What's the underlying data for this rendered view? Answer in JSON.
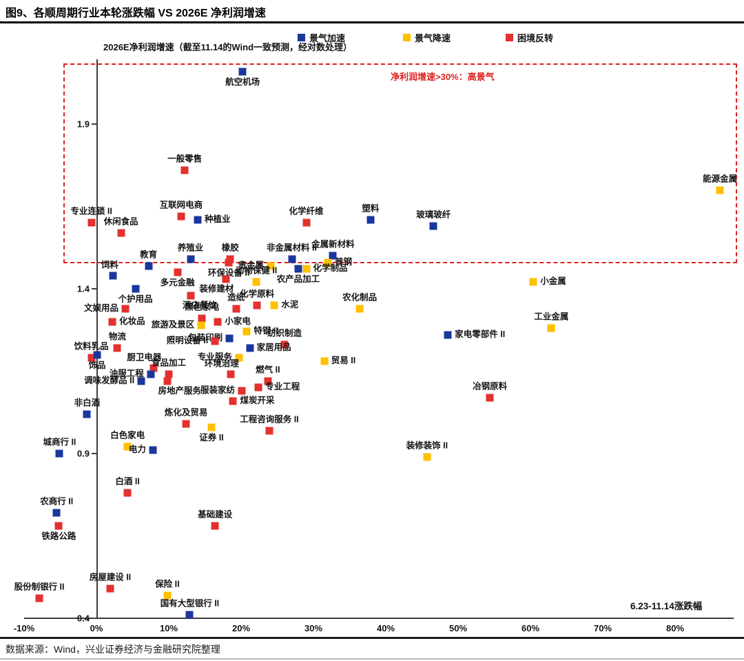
{
  "header": {
    "title": "图9、各顺周期行业本轮涨跌幅 VS 2026E 净利润增速"
  },
  "footer": {
    "source": "数据来源：Wind，兴业证券经济与金融研究院整理"
  },
  "colors": {
    "accelerate_blue": "#1B379E",
    "decelerate_yellow": "#FFC000",
    "reversal_red": "#E2312E",
    "annotation_red": "#E01F1F",
    "axis_gray": "#3C3C3C"
  },
  "chart_data": {
    "type": "scatter",
    "title": "各顺周期行业本轮涨跌幅 VS 2026E 净利润增速",
    "ylabel": "2026E净利润增速（截至11.14的Wind一致预测，经对数处理）",
    "xlabel": "6.23-11.14涨跌幅",
    "annotation": "净利润增速>30%：高景气",
    "grid": false,
    "legend_position": "top-center",
    "xlim": [
      -10,
      88
    ],
    "ylim": [
      0.4,
      2.1
    ],
    "x_tick_labels": [
      "-10%",
      "0%",
      "10%",
      "20%",
      "30%",
      "40%",
      "50%",
      "60%",
      "70%",
      "80%"
    ],
    "x_tick_values": [
      -10,
      0,
      10,
      20,
      30,
      40,
      50,
      60,
      70,
      80
    ],
    "y_ticks": [
      1.9,
      1.4,
      0.9,
      0.4
    ],
    "legend": [
      {
        "name": "景气加速",
        "color": "#1B379E"
      },
      {
        "name": "景气降速",
        "color": "#FFC000"
      },
      {
        "name": "困境反转",
        "color": "#E2312E"
      }
    ],
    "points": [
      {
        "label": "航空机场",
        "series": "景气加速",
        "x": 20.2,
        "y": 2.06,
        "lp": "bottom"
      },
      {
        "label": "一般零售",
        "series": "困境反转",
        "x": 12.2,
        "y": 1.76,
        "lp": "top"
      },
      {
        "label": "能源金属",
        "series": "景气降速",
        "x": 86.2,
        "y": 1.7,
        "lp": "top"
      },
      {
        "label": "专业连锁 II",
        "series": "困境反转",
        "x": -0.7,
        "y": 1.6,
        "lp": "top"
      },
      {
        "label": "互联网电商",
        "series": "困境反转",
        "x": 11.7,
        "y": 1.62,
        "lp": "top"
      },
      {
        "label": "种植业",
        "series": "景气加速",
        "x": 14.0,
        "y": 1.61,
        "lp": "right"
      },
      {
        "label": "休闲食品",
        "series": "困境反转",
        "x": 3.4,
        "y": 1.57,
        "lp": "top"
      },
      {
        "label": "化学纤维",
        "series": "困境反转",
        "x": 29.0,
        "y": 1.6,
        "lp": "top"
      },
      {
        "label": "塑料",
        "series": "景气加速",
        "x": 37.9,
        "y": 1.61,
        "lp": "top"
      },
      {
        "label": "玻璃玻纤",
        "series": "景气加速",
        "x": 46.6,
        "y": 1.59,
        "lp": "top"
      },
      {
        "label": "教育",
        "series": "景气加速",
        "x": 7.2,
        "y": 1.47,
        "lp": "top"
      },
      {
        "label": "养殖业",
        "series": "景气加速",
        "x": 13.0,
        "y": 1.49,
        "lp": "top"
      },
      {
        "label": "橡胶",
        "series": "困境反转",
        "x": 18.5,
        "y": 1.49,
        "lp": "top"
      },
      {
        "label": "环保设备 II",
        "series": "困境反转",
        "x": 18.3,
        "y": 1.48,
        "lp": "bottom"
      },
      {
        "label": "非金属材料 II",
        "series": "景气加速",
        "x": 27.0,
        "y": 1.49,
        "lp": "top"
      },
      {
        "label": "金属新材料",
        "series": "景气加速",
        "x": 32.7,
        "y": 1.5,
        "lp": "top"
      },
      {
        "label": "普钢",
        "series": "景气降速",
        "x": 32.0,
        "y": 1.48,
        "lp": "right"
      },
      {
        "label": "贵金属",
        "series": "景气降速",
        "x": 24.1,
        "y": 1.47,
        "lp": "left"
      },
      {
        "label": "化学制品",
        "series": "景气降速",
        "x": 29.0,
        "y": 1.46,
        "lp": "right"
      },
      {
        "label": "农产品加工",
        "series": "景气加速",
        "x": 27.9,
        "y": 1.46,
        "lp": "bottom"
      },
      {
        "label": "饲料",
        "series": "景气加速",
        "x": 2.3,
        "y": 1.44,
        "lp": "top-left"
      },
      {
        "label": "多元金融",
        "series": "困境反转",
        "x": 11.2,
        "y": 1.45,
        "lp": "bottom"
      },
      {
        "label": "动物保健 II",
        "series": "景气降速",
        "x": 22.1,
        "y": 1.42,
        "lp": "top"
      },
      {
        "label": "装修建材",
        "series": "困境反转",
        "x": 17.9,
        "y": 1.43,
        "lp": "bottom-left"
      },
      {
        "label": "个护用品",
        "series": "景气加速",
        "x": 5.4,
        "y": 1.4,
        "lp": "bottom"
      },
      {
        "label": "酒店餐饮",
        "series": "困境反转",
        "x": 13.0,
        "y": 1.38,
        "lp": "bottom-right"
      },
      {
        "label": "文娱用品",
        "series": "困境反转",
        "x": 4.0,
        "y": 1.34,
        "lp": "left"
      },
      {
        "label": "造纸",
        "series": "困境反转",
        "x": 19.3,
        "y": 1.34,
        "lp": "top"
      },
      {
        "label": "化学原料",
        "series": "困境反转",
        "x": 22.2,
        "y": 1.35,
        "lp": "top"
      },
      {
        "label": "水泥",
        "series": "景气降速",
        "x": 24.6,
        "y": 1.35,
        "lp": "right"
      },
      {
        "label": "农化制品",
        "series": "景气降速",
        "x": 36.4,
        "y": 1.34,
        "lp": "top"
      },
      {
        "label": "小金属",
        "series": "景气降速",
        "x": 60.4,
        "y": 1.42,
        "lp": "right"
      },
      {
        "label": "化妆品",
        "series": "困境反转",
        "x": 2.2,
        "y": 1.3,
        "lp": "right"
      },
      {
        "label": "黑色家电",
        "series": "困境反转",
        "x": 14.6,
        "y": 1.31,
        "lp": "top"
      },
      {
        "label": "旅游及景区",
        "series": "景气降速",
        "x": 14.5,
        "y": 1.29,
        "lp": "left"
      },
      {
        "label": "小家电",
        "series": "困境反转",
        "x": 16.8,
        "y": 1.3,
        "lp": "right"
      },
      {
        "label": "物流",
        "series": "困境反转",
        "x": 2.9,
        "y": 1.22,
        "lp": "top"
      },
      {
        "label": "饮料乳品",
        "series": "困境反转",
        "x": -0.7,
        "y": 1.19,
        "lp": "top"
      },
      {
        "label": "饰品",
        "series": "景气加速",
        "x": 0.1,
        "y": 1.2,
        "lp": "bottom"
      },
      {
        "label": "包装印刷",
        "series": "景气加速",
        "x": 18.4,
        "y": 1.25,
        "lp": "left"
      },
      {
        "label": "特钢 II",
        "series": "景气降速",
        "x": 20.8,
        "y": 1.27,
        "lp": "right"
      },
      {
        "label": "纺织制造",
        "series": "困境反转",
        "x": 26.0,
        "y": 1.23,
        "lp": "top"
      },
      {
        "label": "照明设备 II",
        "series": "困境反转",
        "x": 16.4,
        "y": 1.24,
        "lp": "left"
      },
      {
        "label": "家居用品",
        "series": "景气加速",
        "x": 21.2,
        "y": 1.22,
        "lp": "right"
      },
      {
        "label": "专业服务",
        "series": "景气降速",
        "x": 19.7,
        "y": 1.19,
        "lp": "left"
      },
      {
        "label": "家电零部件 II",
        "series": "景气加速",
        "x": 48.6,
        "y": 1.26,
        "lp": "right"
      },
      {
        "label": "工业金属",
        "series": "景气降速",
        "x": 62.9,
        "y": 1.28,
        "lp": "top"
      },
      {
        "label": "贸易 II",
        "series": "景气降速",
        "x": 31.5,
        "y": 1.18,
        "lp": "right"
      },
      {
        "label": "厨卫电器",
        "series": "困境反转",
        "x": 7.9,
        "y": 1.16,
        "lp": "top-left"
      },
      {
        "label": "油服工程",
        "series": "景气加速",
        "x": 7.5,
        "y": 1.14,
        "lp": "left"
      },
      {
        "label": "食品加工",
        "series": "困境反转",
        "x": 10.0,
        "y": 1.14,
        "lp": "top"
      },
      {
        "label": "环境治理",
        "series": "困境反转",
        "x": 18.6,
        "y": 1.14,
        "lp": "top-left"
      },
      {
        "label": "调味发酵品 II",
        "series": "景气加速",
        "x": 6.2,
        "y": 1.12,
        "lp": "left"
      },
      {
        "label": "房地产服务",
        "series": "困境反转",
        "x": 9.8,
        "y": 1.12,
        "lp": "bottom-right"
      },
      {
        "label": "服装家纺",
        "series": "困境反转",
        "x": 20.1,
        "y": 1.09,
        "lp": "left"
      },
      {
        "label": "燃气 II",
        "series": "困境反转",
        "x": 23.7,
        "y": 1.12,
        "lp": "top"
      },
      {
        "label": "专业工程",
        "series": "困境反转",
        "x": 22.4,
        "y": 1.1,
        "lp": "right"
      },
      {
        "label": "煤炭开采",
        "series": "困境反转",
        "x": 18.9,
        "y": 1.06,
        "lp": "right"
      },
      {
        "label": "冶钢原料",
        "series": "困境反转",
        "x": 54.4,
        "y": 1.07,
        "lp": "top"
      },
      {
        "label": "炼化及贸易",
        "series": "困境反转",
        "x": 12.4,
        "y": 0.99,
        "lp": "top"
      },
      {
        "label": "证券 II",
        "series": "景气降速",
        "x": 15.9,
        "y": 0.98,
        "lp": "bottom"
      },
      {
        "label": "工程咨询服务 II",
        "series": "困境反转",
        "x": 23.9,
        "y": 0.97,
        "lp": "top"
      },
      {
        "label": "非白酒",
        "series": "景气加速",
        "x": -1.3,
        "y": 1.02,
        "lp": "top"
      },
      {
        "label": "城商行 II",
        "series": "景气加速",
        "x": -5.1,
        "y": 0.9,
        "lp": "top"
      },
      {
        "label": "白色家电",
        "series": "景气降速",
        "x": 4.3,
        "y": 0.92,
        "lp": "top"
      },
      {
        "label": "电力",
        "series": "景气加速",
        "x": 7.8,
        "y": 0.91,
        "lp": "left"
      },
      {
        "label": "装修装饰 II",
        "series": "景气降速",
        "x": 45.7,
        "y": 0.89,
        "lp": "top"
      },
      {
        "label": "白酒 II",
        "series": "困境反转",
        "x": 4.3,
        "y": 0.78,
        "lp": "top"
      },
      {
        "label": "农商行 II",
        "series": "景气加速",
        "x": -5.5,
        "y": 0.72,
        "lp": "top"
      },
      {
        "label": "铁路公路",
        "series": "困境反转",
        "x": -5.2,
        "y": 0.68,
        "lp": "bottom"
      },
      {
        "label": "基础建设",
        "series": "困境反转",
        "x": 16.4,
        "y": 0.68,
        "lp": "top"
      },
      {
        "label": "股份制银行 II",
        "series": "困境反转",
        "x": -7.9,
        "y": 0.46,
        "lp": "top"
      },
      {
        "label": "房屋建设 II",
        "series": "困境反转",
        "x": 1.9,
        "y": 0.49,
        "lp": "top"
      },
      {
        "label": "保险 II",
        "series": "景气降速",
        "x": 9.8,
        "y": 0.47,
        "lp": "top"
      },
      {
        "label": "国有大型银行 II",
        "series": "景气加速",
        "x": 12.9,
        "y": 0.41,
        "lp": "top"
      }
    ]
  }
}
